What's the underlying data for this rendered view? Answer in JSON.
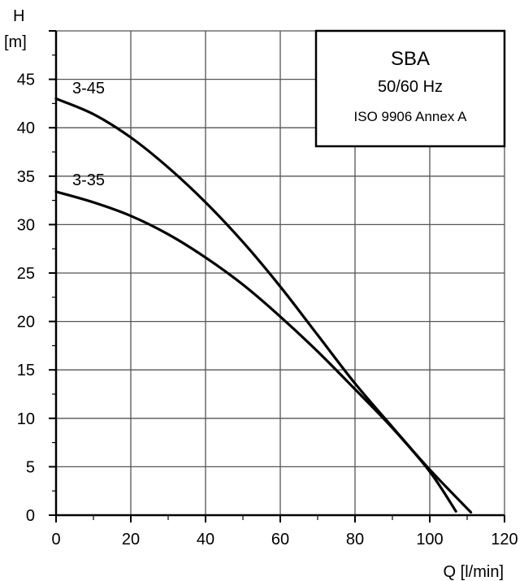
{
  "chart_data": {
    "type": "line",
    "title": "",
    "xlabel": "Q [l/min]",
    "ylabel_line1": "H",
    "ylabel_line2": "[m]",
    "xlim": [
      0,
      120
    ],
    "ylim": [
      0,
      50
    ],
    "x_ticks": [
      0,
      20,
      40,
      60,
      80,
      100,
      120
    ],
    "x_tick_labels": [
      "0",
      "20",
      "40",
      "60",
      "80",
      "100",
      "120"
    ],
    "y_ticks": [
      0,
      5,
      10,
      15,
      20,
      25,
      30,
      35,
      40,
      45
    ],
    "y_tick_labels": [
      "0",
      "5",
      "10",
      "15",
      "20",
      "25",
      "30",
      "35",
      "40",
      "45"
    ],
    "grid": true,
    "legend_box": {
      "title": "SBA",
      "line1": "50/60  Hz",
      "line2": "ISO 9906 Annex A",
      "placement": "top-right"
    },
    "series": [
      {
        "name": "3-45",
        "x": [
          0,
          10,
          20,
          30,
          40,
          50,
          60,
          70,
          80,
          90,
          100,
          111
        ],
        "y": [
          43.0,
          41.4,
          39.0,
          35.9,
          32.3,
          28.2,
          23.6,
          18.6,
          13.6,
          9.1,
          4.7,
          0.3
        ]
      },
      {
        "name": "3-35",
        "x": [
          0,
          10,
          20,
          30,
          40,
          50,
          60,
          70,
          80,
          90,
          100,
          107
        ],
        "y": [
          33.4,
          32.3,
          30.9,
          29.0,
          26.6,
          23.8,
          20.5,
          16.9,
          13.0,
          9.0,
          4.5,
          0.4
        ]
      }
    ]
  }
}
